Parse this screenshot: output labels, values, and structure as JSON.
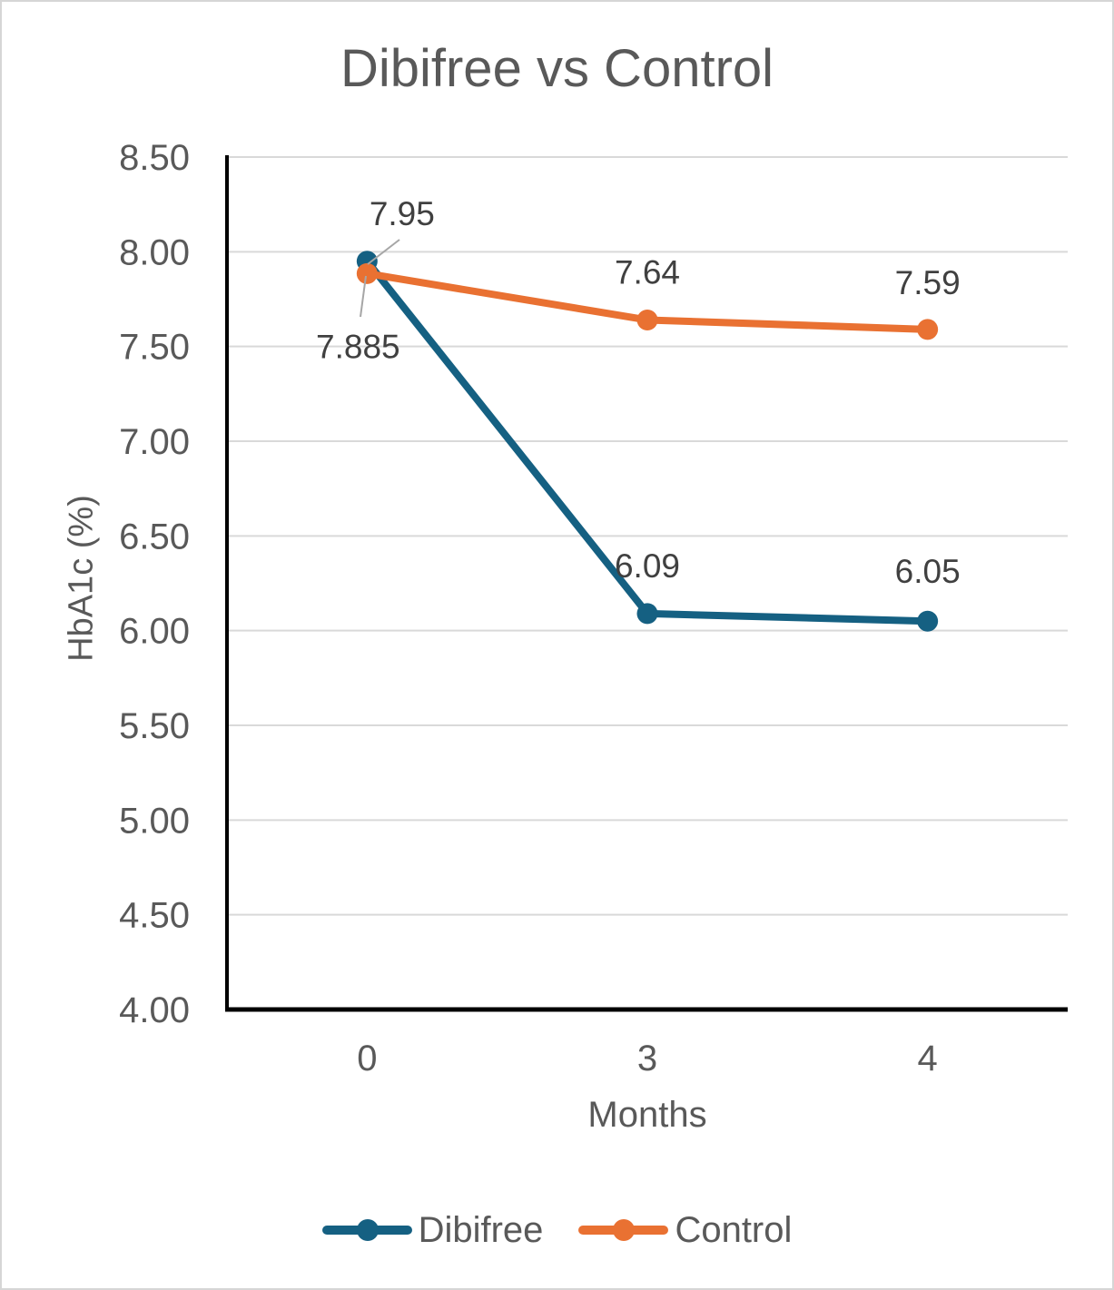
{
  "frame": {
    "background": "#ffffff",
    "border_color": "#d6d6d6"
  },
  "chart_data": {
    "type": "line",
    "title": "Dibifree vs Control",
    "xlabel": "Months",
    "ylabel": "HbA1c (%)",
    "categories": [
      "0",
      "3",
      "4"
    ],
    "series": [
      {
        "name": "Dibifree",
        "color": "#156082",
        "values": [
          7.95,
          6.09,
          6.05
        ],
        "point_labels": [
          "7.95",
          "6.09",
          "6.05"
        ]
      },
      {
        "name": "Control",
        "color": "#E97132",
        "values": [
          7.885,
          7.64,
          7.59
        ],
        "point_labels": [
          "7.885",
          "7.64",
          "7.59"
        ]
      }
    ],
    "ylim": [
      4.0,
      8.5
    ],
    "ytick_step": 0.5,
    "ytick_labels": [
      "4.00",
      "4.50",
      "5.00",
      "5.50",
      "6.00",
      "6.50",
      "7.00",
      "7.50",
      "8.00",
      "8.50"
    ],
    "grid": true,
    "legend_position": "bottom",
    "legend": [
      "Dibifree",
      "Control"
    ],
    "colors": {
      "axis": "#000000",
      "gridline": "#d9d9d9",
      "tick_text": "#595959",
      "data_label_text": "#404040",
      "title_text": "#595959",
      "leader_line": "#a6a6a6"
    }
  }
}
